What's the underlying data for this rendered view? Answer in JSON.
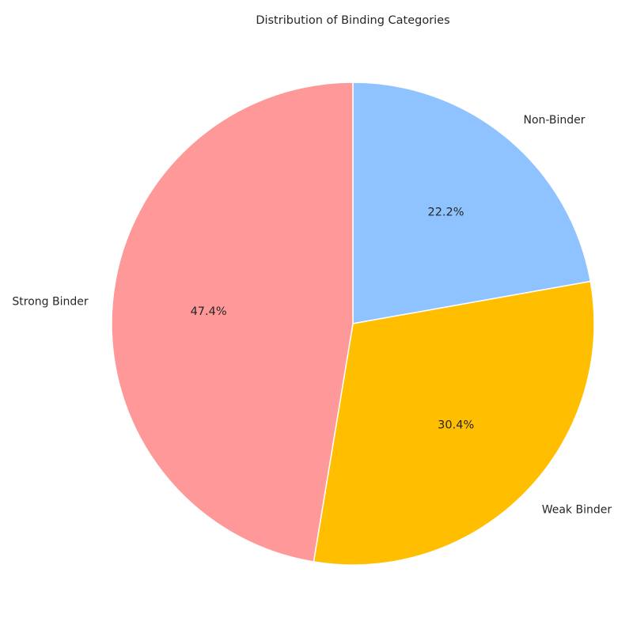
{
  "chart_data": {
    "type": "pie",
    "title": "Distribution of Binding Categories",
    "start_angle_deg": 90,
    "direction": "clockwise",
    "slices": [
      {
        "label": "Non-Binder",
        "value": 22.2,
        "pct_label": "22.2%",
        "color": "#8fc3ff"
      },
      {
        "label": "Weak Binder",
        "value": 30.4,
        "pct_label": "30.4%",
        "color": "#ffbf00"
      },
      {
        "label": "Strong Binder",
        "value": 47.4,
        "pct_label": "47.4%",
        "color": "#ff9999"
      }
    ],
    "edge_color": "#ffffff"
  }
}
